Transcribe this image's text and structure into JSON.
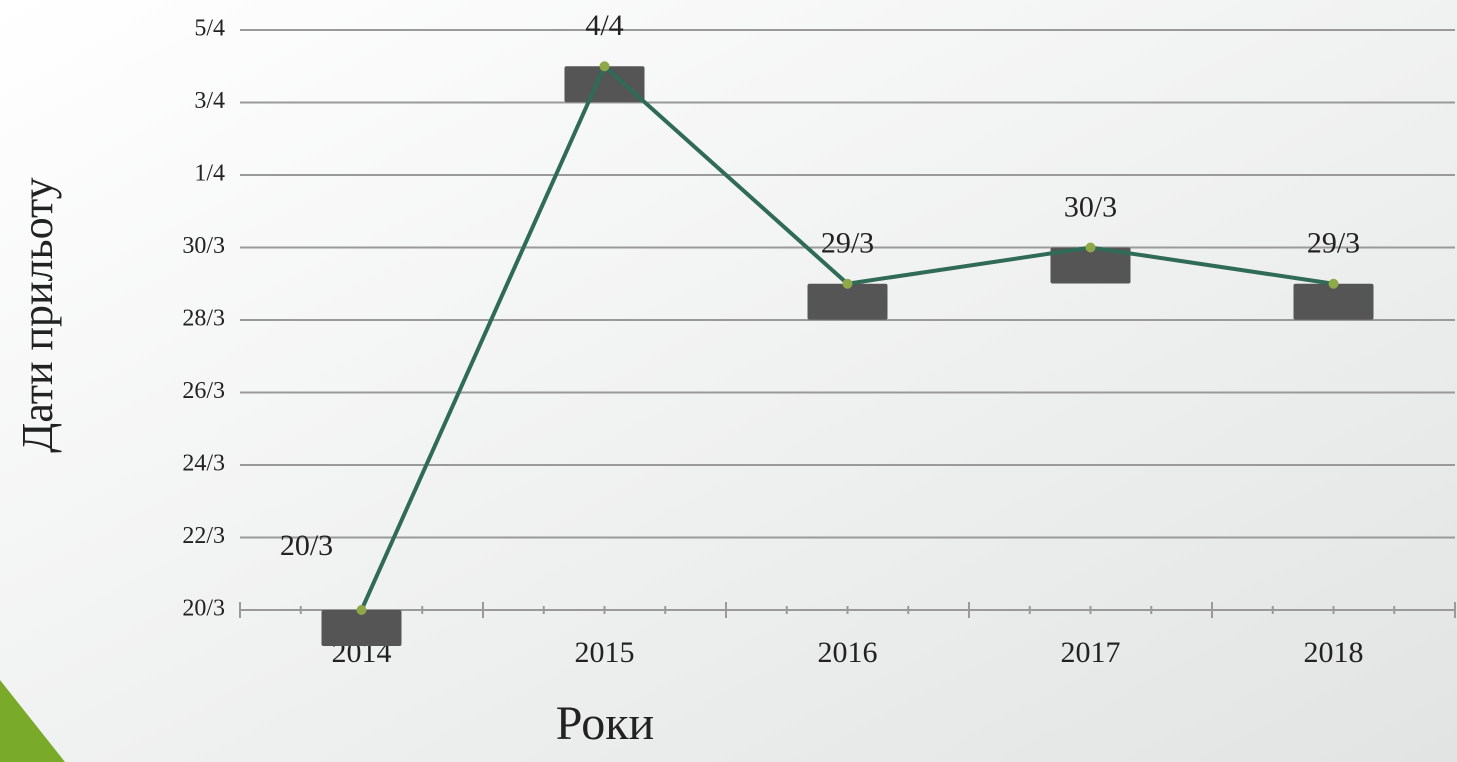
{
  "chart_data": {
    "type": "line",
    "x_label": "Роки",
    "y_label": "Дати прильоту",
    "categories": [
      "2014",
      "2015",
      "2016",
      "2017",
      "2018"
    ],
    "series": [
      {
        "color": "#2f6b57",
        "values": [
          20,
          35,
          29,
          30,
          29
        ],
        "value_labels": [
          "20/3",
          "4/4",
          "29/3",
          "30/3",
          "29/3"
        ]
      }
    ],
    "ylim": [
      20,
      36
    ],
    "yticks": [
      {
        "value": 20,
        "label": "20/3"
      },
      {
        "value": 22,
        "label": "22/3"
      },
      {
        "value": 24,
        "label": "24/3"
      },
      {
        "value": 26,
        "label": "26/3"
      },
      {
        "value": 28,
        "label": "28/3"
      },
      {
        "value": 30,
        "label": "30/3"
      },
      {
        "value": 32,
        "label": "1/4"
      },
      {
        "value": 34,
        "label": "3/4"
      },
      {
        "value": 36,
        "label": "5/4"
      }
    ],
    "grid": true
  }
}
